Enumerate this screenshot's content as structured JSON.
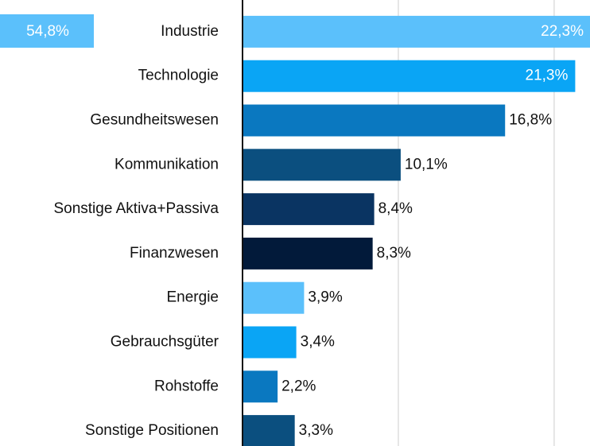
{
  "chart_data": {
    "type": "hbar",
    "annotation": "54,8%",
    "categories": [
      "Industrie",
      "Technologie",
      "Gesundheitswesen",
      "Kommunikation",
      "Sonstige Aktiva+Passiva",
      "Finanzwesen",
      "Energie",
      "Gebrauchsgüter",
      "Rohstoffe",
      "Sonstige Positionen"
    ],
    "values": [
      22.3,
      21.3,
      16.8,
      10.1,
      8.4,
      8.3,
      3.9,
      3.4,
      2.2,
      3.3
    ],
    "value_labels": [
      "22,3%",
      "21,3%",
      "16,8%",
      "10,1%",
      "8,4%",
      "8,3%",
      "3,9%",
      "3,4%",
      "2,2%",
      "3,3%"
    ],
    "colors": [
      "#5bc0fb",
      "#0aa5f5",
      "#0a78c0",
      "#0b4f7f",
      "#0a3462",
      "#021a3a",
      "#5bc0fb",
      "#0aa5f5",
      "#0a78c0",
      "#0b4f7f"
    ],
    "xlim": [
      0,
      22.3
    ],
    "xticks": [
      0,
      10,
      20
    ],
    "grid": true
  }
}
